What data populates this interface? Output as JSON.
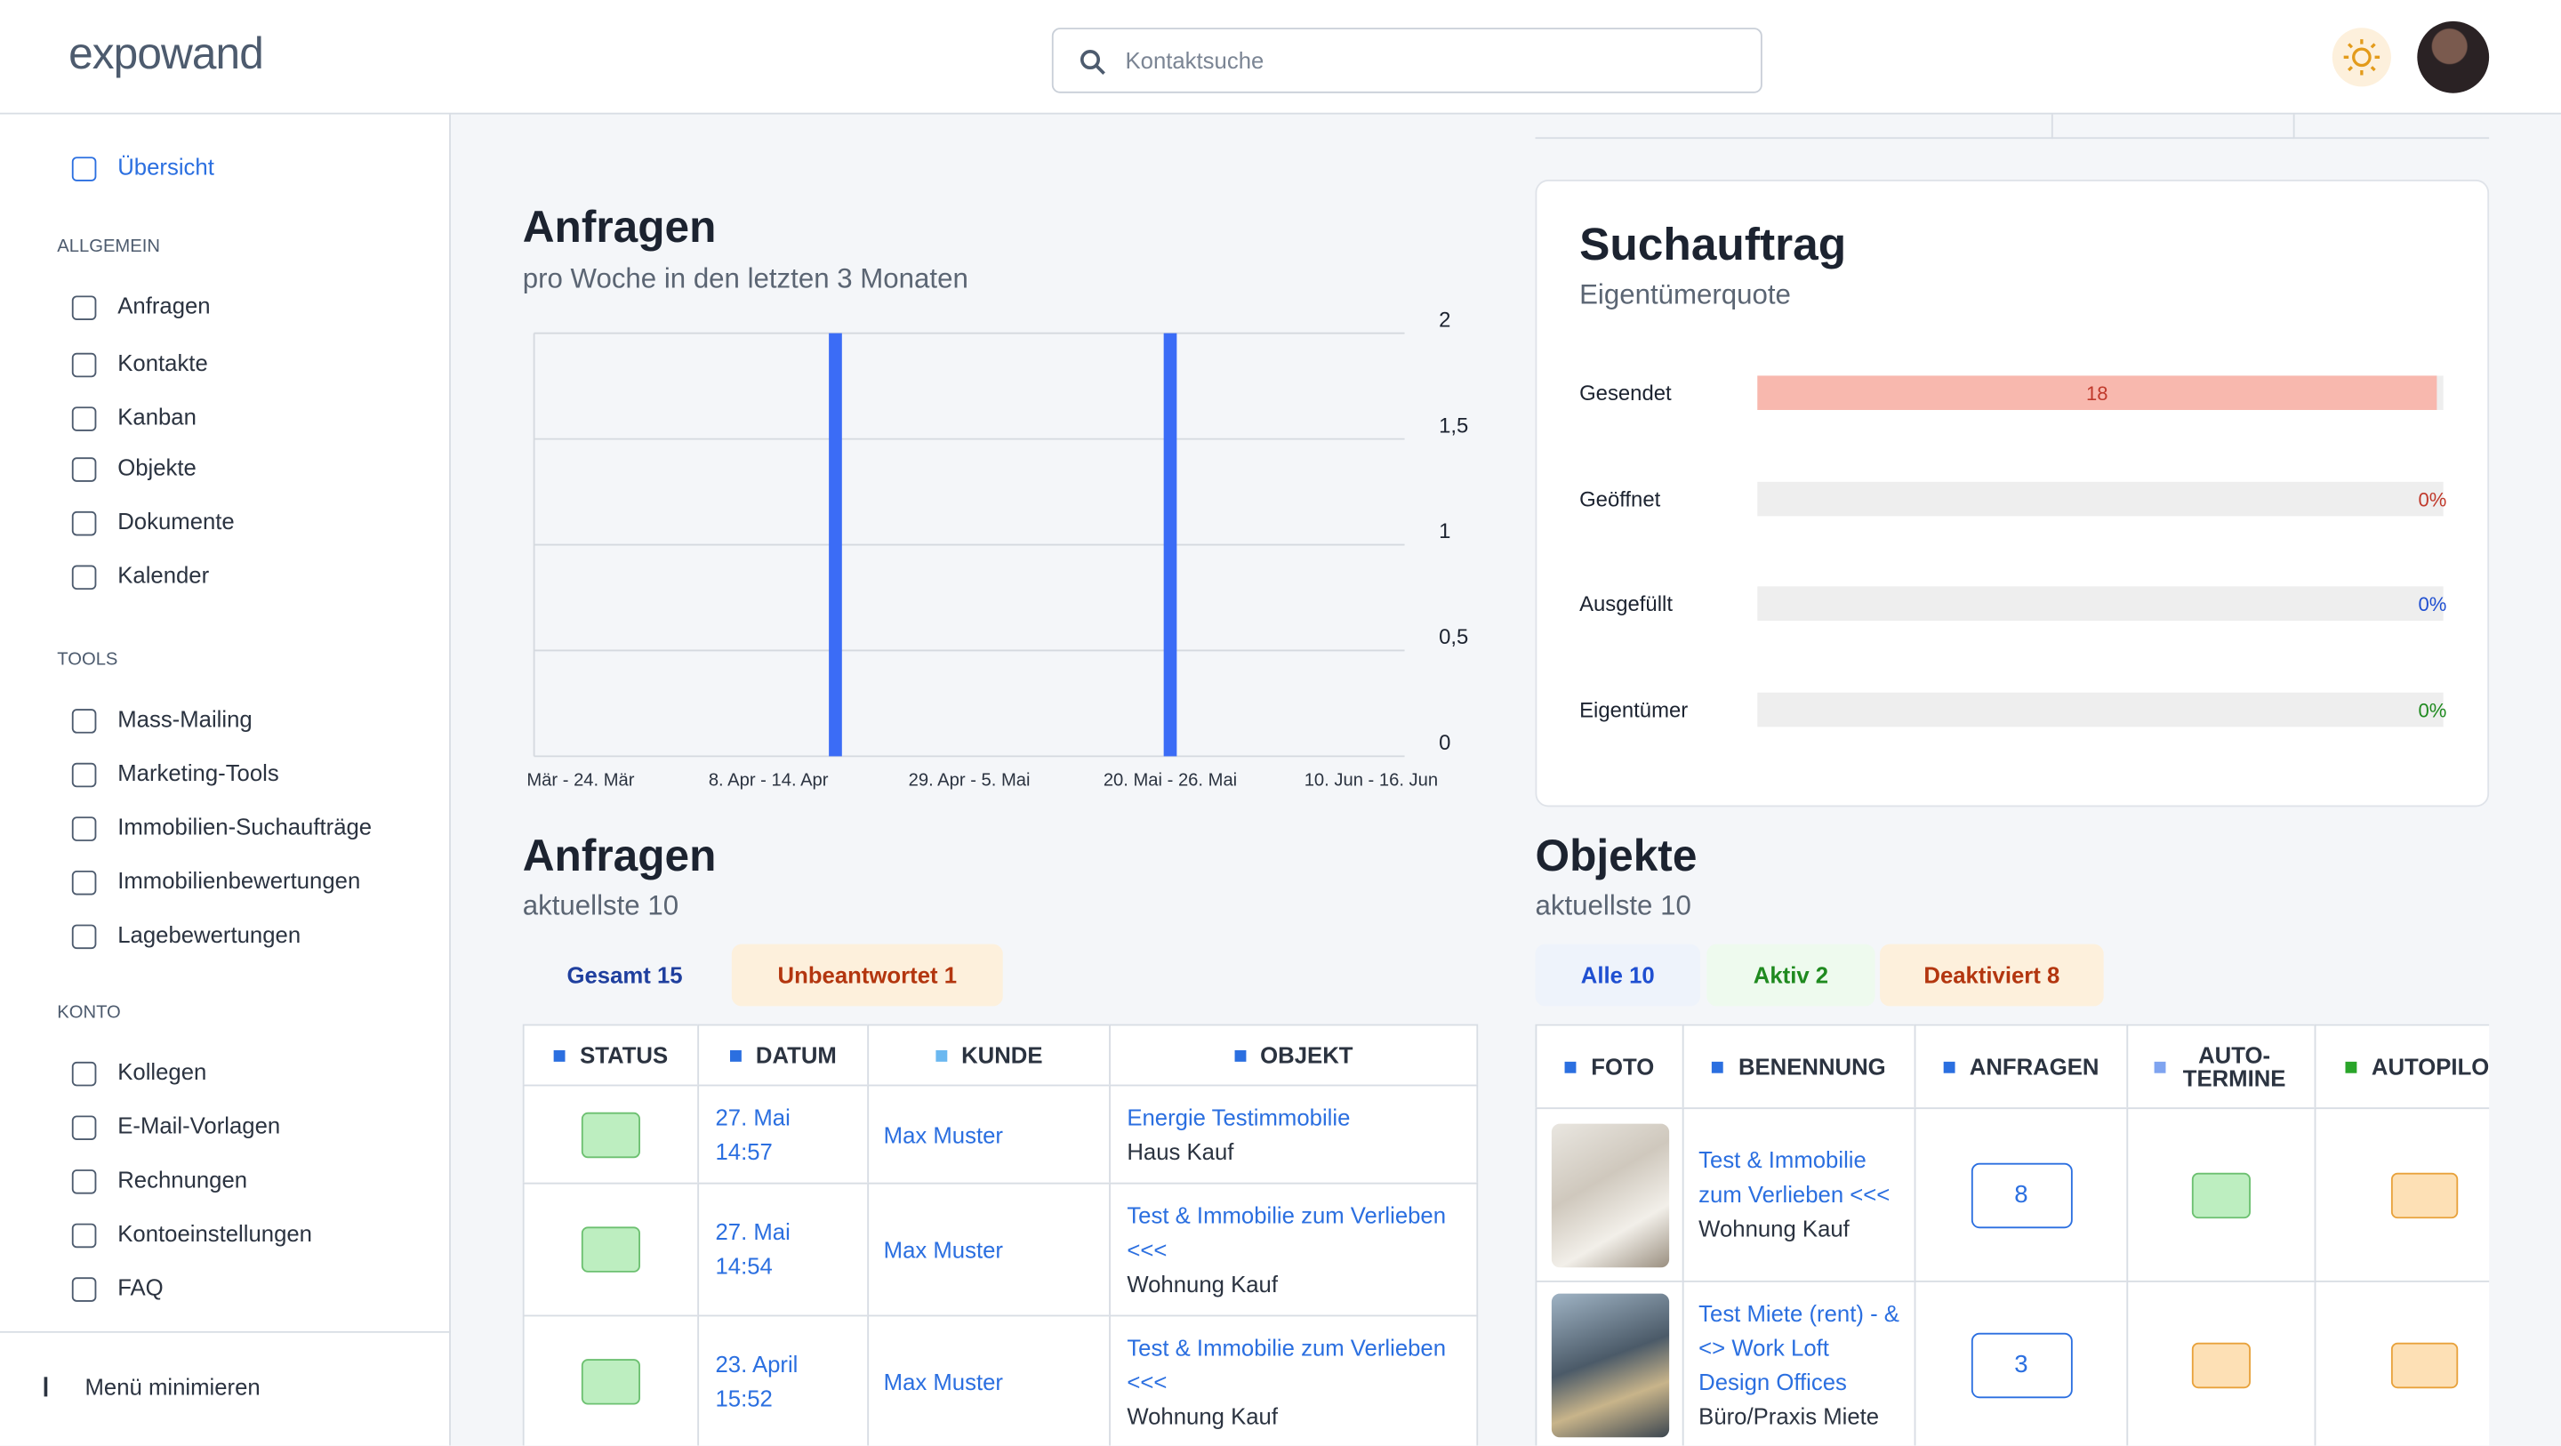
{
  "header": {
    "logo": "expowand",
    "search_placeholder": "Kontaktsuche"
  },
  "sidebar": {
    "overview": "Übersicht",
    "sections": [
      {
        "title": "ALLGEMEIN",
        "items": [
          "Anfragen",
          "Kontakte",
          "Kanban",
          "Objekte",
          "Dokumente",
          "Kalender"
        ]
      },
      {
        "title": "TOOLS",
        "items": [
          "Mass-Mailing",
          "Marketing-Tools",
          "Immobilien-Suchaufträge",
          "Immobilienbewertungen",
          "Lagebewertungen"
        ]
      },
      {
        "title": "KONTO",
        "items": [
          "Kollegen",
          "E-Mail-Vorlagen",
          "Rechnungen",
          "Kontoeinstellungen",
          "FAQ"
        ]
      }
    ],
    "minimize": "Menü minimieren"
  },
  "chart_data": {
    "type": "bar",
    "title": "Anfragen",
    "subtitle": "pro Woche in den letzten 3 Monaten",
    "categories": [
      "Mär - 24. Mär",
      null,
      null,
      "8. Apr - 14. Apr",
      null,
      null,
      "29. Apr - 5. Mai",
      null,
      null,
      "20. Mai - 26. Mai",
      null,
      null,
      "10. Jun - 16. Jun"
    ],
    "values": [
      0,
      0,
      0,
      0,
      2,
      0,
      0,
      0,
      0,
      2,
      0,
      0,
      0
    ],
    "color": "#3b6cf6",
    "ylim": [
      0,
      2
    ],
    "yticks": [
      0,
      {
        "value": 0.5,
        "label": "0,5"
      },
      1,
      {
        "value": 1.5,
        "label": "1,5"
      },
      2
    ],
    "grid": true
  },
  "suchauftrag": {
    "title": "Suchauftrag",
    "subtitle": "Eigentümerquote",
    "rows": [
      {
        "label": "Gesendet",
        "value": 18,
        "color": "#f8b8ae",
        "text_color": "#c0392b"
      },
      {
        "label": "Geöffnet",
        "value": 0,
        "value_label": "0%",
        "color": "#f8b8ae",
        "text_color": "#c0392b"
      },
      {
        "label": "Ausgefüllt",
        "value": 0,
        "value_label": "0%",
        "color": "#9db8f5",
        "text_color": "#1f4fd1"
      },
      {
        "label": "Eigentümer",
        "value": 0,
        "value_label": "0%",
        "color": "#9be39b",
        "text_color": "#1f8a1f"
      }
    ]
  },
  "anfragen": {
    "title": "Anfragen",
    "subtitle": "aktuellste 10",
    "tabs": [
      "Gesamt 15",
      "Unbeantwortet 1"
    ],
    "columns": [
      "STATUS",
      "DATUM",
      "KUNDE",
      "OBJEKT"
    ],
    "rows": [
      {
        "date": "27. Mai",
        "time": "14:57",
        "customer": "Max Muster",
        "object": "Energie Testimmobilie",
        "object_type": "Haus Kauf"
      },
      {
        "date": "27. Mai",
        "time": "14:54",
        "customer": "Max Muster",
        "object": "Test & Immobilie zum Verlieben <<<",
        "object_type": "Wohnung Kauf"
      },
      {
        "date": "23. April",
        "time": "15:52",
        "customer": "Max Muster",
        "object": "Test & Immobilie zum Verlieben <<<",
        "object_type": "Wohnung Kauf"
      }
    ]
  },
  "objekte": {
    "title": "Objekte",
    "subtitle": "aktuellste 10",
    "tabs": [
      "Alle 10",
      "Aktiv 2",
      "Deaktiviert 8"
    ],
    "columns": [
      "FOTO",
      "BENENNUNG",
      "ANFRAGEN",
      "AUTO-TERMINE",
      "AUTOPILOT"
    ],
    "rows": [
      {
        "name": "Test & Immobilie zum Verlieben <<<",
        "type": "Wohnung Kauf",
        "inquiries": 8
      },
      {
        "name": "Test Miete (rent) - & <> Work Loft Design Offices",
        "type": "Büro/Praxis Miete",
        "inquiries": 3
      }
    ]
  }
}
